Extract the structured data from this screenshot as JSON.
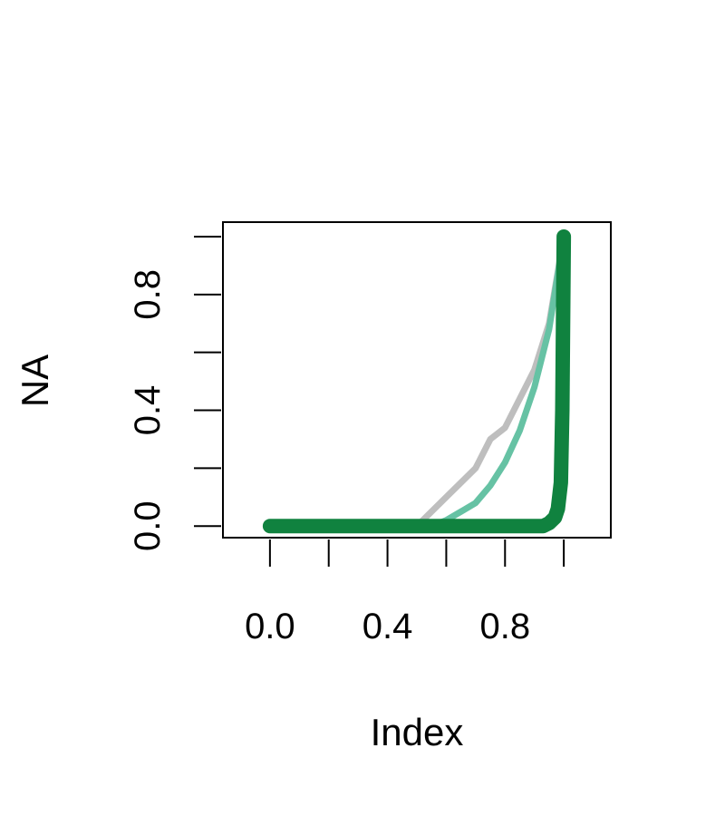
{
  "chart_data": {
    "type": "line",
    "title": "",
    "xlabel": "Index",
    "ylabel": "NA",
    "xlim": [
      -0.16,
      1.16
    ],
    "ylim": [
      -0.04,
      1.05
    ],
    "x_ticks": [
      0.0,
      0.2,
      0.4,
      0.6,
      0.8,
      1.0
    ],
    "x_tick_labels": [
      "0.0",
      "0.4",
      "0.8"
    ],
    "x_tick_label_values": [
      0.0,
      0.4,
      0.8
    ],
    "y_ticks": [
      0.0,
      0.2,
      0.4,
      0.6,
      0.8,
      1.0
    ],
    "y_tick_labels": [
      "0.0",
      "0.4",
      "0.8"
    ],
    "y_tick_label_values": [
      0.0,
      0.4,
      0.8
    ],
    "grid": false,
    "legend": "none",
    "series": [
      {
        "color": "#BEBEBE",
        "x": [
          0.0,
          0.1,
          0.2,
          0.3,
          0.4,
          0.5,
          0.6,
          0.7,
          0.75,
          0.8,
          0.9,
          0.95,
          1.0
        ],
        "y": [
          0.0,
          0.0,
          0.0,
          0.0,
          0.0,
          0.0,
          0.1,
          0.2,
          0.3,
          0.34,
          0.54,
          0.7,
          1.0
        ]
      },
      {
        "color": "#66C2A4",
        "x": [
          0.0,
          0.1,
          0.2,
          0.3,
          0.4,
          0.5,
          0.55,
          0.6,
          0.65,
          0.7,
          0.75,
          0.8,
          0.85,
          0.9,
          0.95,
          1.0
        ],
        "y": [
          0.0,
          0.0,
          0.0,
          0.0,
          0.0,
          0.0,
          0.0,
          0.02,
          0.05,
          0.08,
          0.14,
          0.22,
          0.33,
          0.48,
          0.68,
          1.0
        ]
      },
      {
        "color": "#10823F",
        "x": [
          0.0,
          0.1,
          0.2,
          0.3,
          0.4,
          0.5,
          0.6,
          0.7,
          0.8,
          0.9,
          0.93,
          0.95,
          0.97,
          0.98,
          0.99,
          0.995,
          1.0
        ],
        "y": [
          0.0,
          0.0,
          0.0,
          0.0,
          0.0,
          0.0,
          0.0,
          0.0,
          0.0,
          0.0,
          0.0,
          0.01,
          0.03,
          0.06,
          0.15,
          0.4,
          1.0
        ]
      }
    ]
  }
}
